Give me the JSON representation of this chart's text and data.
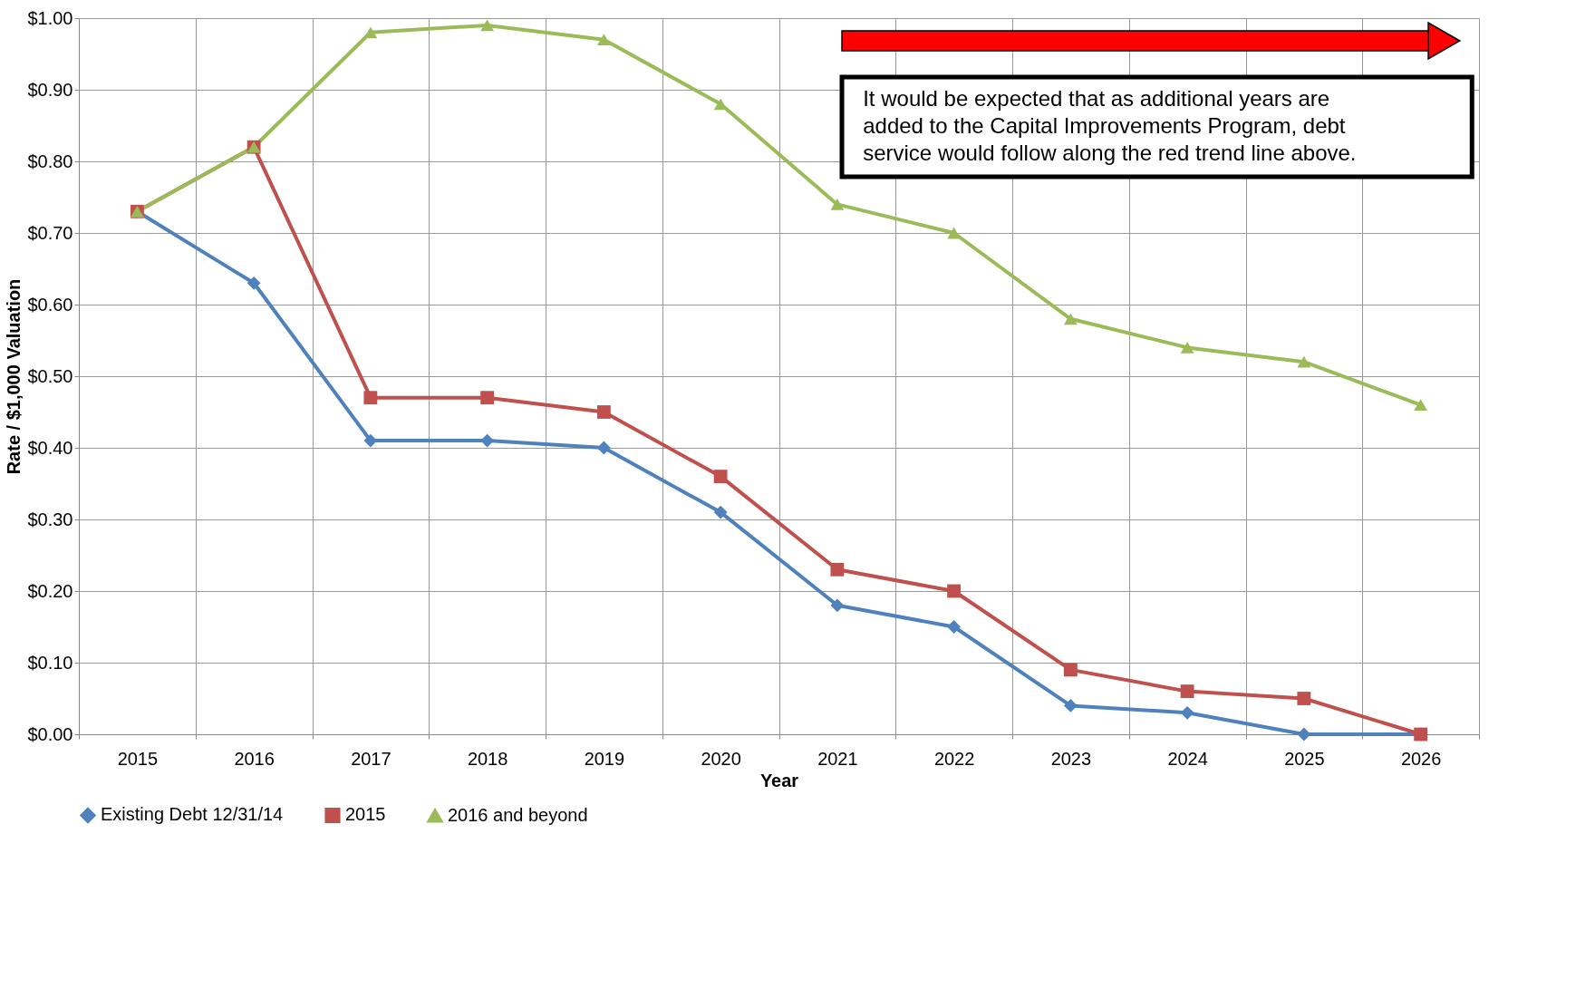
{
  "chart_data": {
    "type": "line",
    "xlabel": "Year",
    "ylabel": "Rate / $1,000 Valuation",
    "categories": [
      "2015",
      "2016",
      "2017",
      "2018",
      "2019",
      "2020",
      "2021",
      "2022",
      "2023",
      "2024",
      "2025",
      "2026"
    ],
    "series": [
      {
        "name": "Existing Debt 12/31/14",
        "color": "#4f81bd",
        "marker": "diamond",
        "values": [
          0.73,
          0.63,
          0.41,
          0.41,
          0.4,
          0.31,
          0.18,
          0.15,
          0.04,
          0.03,
          0.0,
          0.0
        ]
      },
      {
        "name": "2015",
        "color": "#c0504d",
        "marker": "square",
        "values": [
          0.73,
          0.82,
          0.47,
          0.47,
          0.45,
          0.36,
          0.23,
          0.2,
          0.09,
          0.06,
          0.05,
          0.0
        ]
      },
      {
        "name": "2016 and beyond",
        "color": "#9bbb59",
        "marker": "triangle",
        "values": [
          0.73,
          0.82,
          0.98,
          0.99,
          0.97,
          0.88,
          0.74,
          0.7,
          0.58,
          0.54,
          0.52,
          0.46
        ]
      }
    ],
    "ylim": [
      0,
      1
    ],
    "yticks": [
      {
        "value": 0,
        "label": "$0.00"
      },
      {
        "value": 0.1,
        "label": "$0.10"
      },
      {
        "value": 0.2,
        "label": "$0.20"
      },
      {
        "value": 0.3,
        "label": "$0.30"
      },
      {
        "value": 0.4,
        "label": "$0.40"
      },
      {
        "value": 0.5,
        "label": "$0.50"
      },
      {
        "value": 0.6,
        "label": "$0.60"
      },
      {
        "value": 0.7,
        "label": "$0.70"
      },
      {
        "value": 0.8,
        "label": "$0.80"
      },
      {
        "value": 0.9,
        "label": "$0.90"
      },
      {
        "value": 1,
        "label": "$1.00"
      }
    ],
    "annotations": [
      "It would be expected that as additional years are added to the Capital Improvements Program, debt service would follow along the red trend line above."
    ],
    "grid": true,
    "legend": "bottom",
    "line_style": "solid"
  }
}
